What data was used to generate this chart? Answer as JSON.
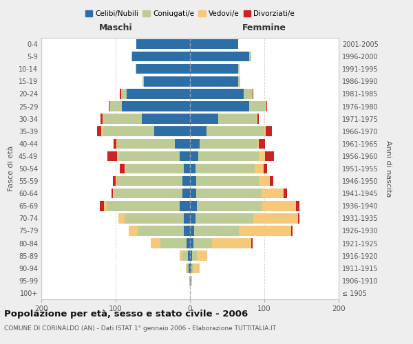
{
  "age_groups": [
    "100+",
    "95-99",
    "90-94",
    "85-89",
    "80-84",
    "75-79",
    "70-74",
    "65-69",
    "60-64",
    "55-59",
    "50-54",
    "45-49",
    "40-44",
    "35-39",
    "30-34",
    "25-29",
    "20-24",
    "15-19",
    "10-14",
    "5-9",
    "0-4"
  ],
  "birth_years": [
    "≤ 1905",
    "1906-1910",
    "1911-1915",
    "1916-1920",
    "1921-1925",
    "1926-1930",
    "1931-1935",
    "1936-1940",
    "1941-1945",
    "1946-1950",
    "1951-1955",
    "1956-1960",
    "1961-1965",
    "1966-1970",
    "1971-1975",
    "1976-1980",
    "1981-1985",
    "1986-1990",
    "1991-1995",
    "1996-2000",
    "2001-2005"
  ],
  "maschi_celibi": [
    0,
    0,
    2,
    3,
    5,
    8,
    8,
    14,
    10,
    10,
    8,
    14,
    20,
    48,
    65,
    92,
    85,
    62,
    72,
    78,
    72
  ],
  "maschi_coniugati": [
    0,
    1,
    3,
    7,
    35,
    62,
    80,
    98,
    92,
    88,
    78,
    82,
    78,
    70,
    52,
    16,
    8,
    2,
    1,
    1,
    0
  ],
  "maschi_vedovi": [
    0,
    0,
    1,
    4,
    13,
    12,
    8,
    4,
    2,
    2,
    2,
    2,
    1,
    1,
    1,
    0,
    0,
    0,
    0,
    0,
    0
  ],
  "maschi_divorziati": [
    0,
    0,
    0,
    0,
    0,
    0,
    0,
    5,
    2,
    4,
    6,
    13,
    4,
    6,
    2,
    1,
    1,
    0,
    0,
    0,
    0
  ],
  "femmine_nubili": [
    0,
    1,
    2,
    3,
    5,
    6,
    7,
    9,
    8,
    8,
    7,
    11,
    13,
    22,
    38,
    80,
    72,
    65,
    65,
    80,
    65
  ],
  "femmine_coniugate": [
    0,
    0,
    3,
    6,
    25,
    60,
    78,
    88,
    88,
    85,
    80,
    82,
    78,
    78,
    52,
    22,
    12,
    3,
    2,
    2,
    0
  ],
  "femmine_vedove": [
    0,
    2,
    8,
    14,
    52,
    70,
    60,
    46,
    30,
    14,
    12,
    8,
    2,
    2,
    1,
    1,
    0,
    0,
    0,
    0,
    0
  ],
  "femmine_divorziate": [
    0,
    0,
    0,
    0,
    2,
    2,
    2,
    4,
    5,
    5,
    5,
    12,
    8,
    8,
    2,
    1,
    1,
    0,
    0,
    0,
    0
  ],
  "color_celibi": "#2E6EA6",
  "color_coniugati": "#BDCC97",
  "color_vedovi": "#F5C87A",
  "color_divorziati": "#CC2222",
  "title": "Popolazione per età, sesso e stato civile - 2006",
  "subtitle": "COMUNE DI CORINALDO (AN) - Dati ISTAT 1° gennaio 2006 - Elaborazione TUTTITALIA.IT",
  "label_maschi": "Maschi",
  "label_femmine": "Femmine",
  "ylabel_left": "Fasce di età",
  "ylabel_right": "Anni di nascita",
  "legend_labels": [
    "Celibi/Nubili",
    "Coniugati/e",
    "Vedovi/e",
    "Divorziati/e"
  ],
  "xlim": 200,
  "bg_color": "#eeeeee",
  "plot_bg": "#ffffff"
}
